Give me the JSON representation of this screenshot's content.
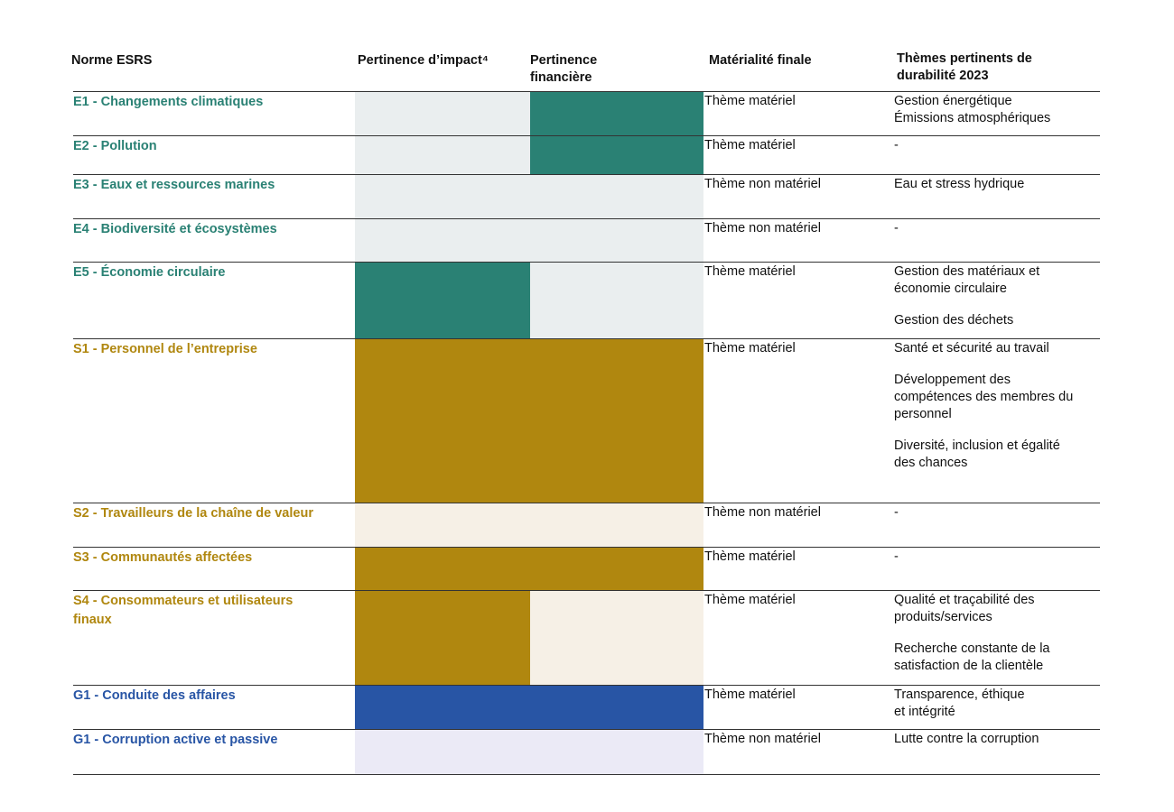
{
  "colors": {
    "env": "#2a8174",
    "env_light": "#eaeeef",
    "soc": "#b0870f",
    "soc_light": "#f6f0e6",
    "gov": "#2855a5",
    "gov_light": "#ebeaf6"
  },
  "headers": {
    "standard": "Norme ESRS",
    "impact": "Pertinence d’impact⁴",
    "financial": "Pertinence\nfinancière",
    "final": "Matérialité finale",
    "themes": "Thèmes pertinents de\ndurabilité 2023"
  },
  "rows": [
    {
      "standard": "E1 - Changements climatiques",
      "group": "env",
      "impact": "low",
      "financial": "high",
      "final": "Thème matériel",
      "themes": [
        "Gestion énergétique\nÉmissions atmosphériques"
      ],
      "themes_tight": true
    },
    {
      "standard": "E2 - Pollution",
      "group": "env",
      "impact": "low",
      "financial": "high",
      "final": "Thème matériel",
      "themes": [
        "-"
      ]
    },
    {
      "standard": "E3 - Eaux et ressources marines",
      "group": "env",
      "impact": "low",
      "financial": "low",
      "final": "Thème non matériel",
      "themes": [
        "Eau et stress hydrique"
      ]
    },
    {
      "standard": "E4 - Biodiversité et écosystèmes",
      "group": "env",
      "impact": "low",
      "financial": "low",
      "final": "Thème non matériel",
      "themes": [
        "-"
      ]
    },
    {
      "standard": "E5 - Économie circulaire",
      "group": "env",
      "impact": "high",
      "financial": "low",
      "final": "Thème matériel",
      "themes": [
        "Gestion des matériaux et\néconomie circulaire",
        "Gestion des déchets"
      ]
    },
    {
      "standard": "S1 - Personnel de l’entreprise",
      "group": "soc",
      "impact": "high",
      "financial": "high",
      "final": "Thème matériel",
      "themes": [
        "Santé et sécurité au travail",
        "Développement des\ncompétences des membres du\npersonnel",
        "Diversité, inclusion et égalité\ndes chances"
      ]
    },
    {
      "standard": "S2 - Travailleurs de la chaîne de valeur",
      "group": "soc",
      "impact": "low",
      "financial": "low",
      "final": "Thème non matériel",
      "themes": [
        "-"
      ]
    },
    {
      "standard": "S3 - Communautés affectées",
      "group": "soc",
      "impact": "high",
      "financial": "high",
      "final": "Thème matériel",
      "themes": [
        "-"
      ]
    },
    {
      "standard": "S4 - Consommateurs et utilisateurs\nfinaux",
      "group": "soc",
      "impact": "high",
      "financial": "low",
      "final": "Thème matériel",
      "themes": [
        "Qualité et traçabilité des\nproduits/services",
        "Recherche constante de la\nsatisfaction de la clientèle"
      ]
    },
    {
      "standard": "G1 - Conduite des affaires",
      "group": "gov",
      "impact": "high",
      "financial": "high",
      "final": "Thème matériel",
      "themes": [
        "Transparence, éthique\net intégrité"
      ],
      "themes_tight": true
    },
    {
      "standard": "G1 - Corruption active et passive",
      "group": "gov",
      "impact": "low",
      "financial": "low",
      "final": "Thème non matériel",
      "themes": [
        "Lutte contre la corruption"
      ]
    }
  ]
}
